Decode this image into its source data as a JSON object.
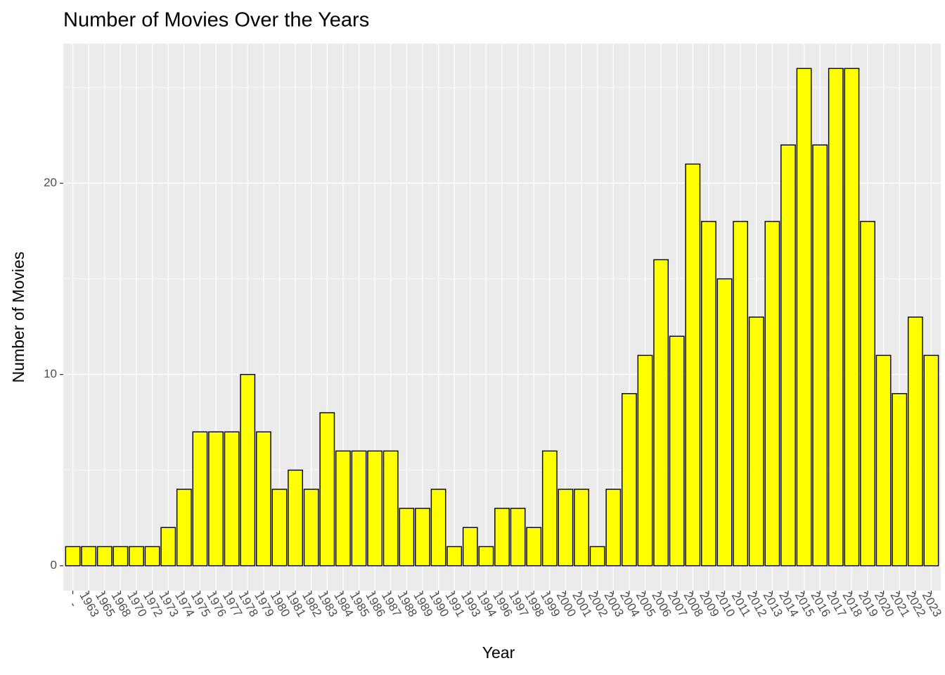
{
  "chart_data": {
    "type": "bar",
    "title": "Number of Movies Over the Years",
    "x_label": "Year",
    "y_label": "Number of Movies",
    "categories": [
      "-",
      "1963",
      "1965",
      "1968",
      "1970",
      "1972",
      "1973",
      "1974",
      "1975",
      "1976",
      "1977",
      "1978",
      "1979",
      "1980",
      "1981",
      "1982",
      "1983",
      "1984",
      "1985",
      "1986",
      "1987",
      "1988",
      "1989",
      "1990",
      "1991",
      "1993",
      "1994",
      "1996",
      "1997",
      "1998",
      "1999",
      "2000",
      "2001",
      "2002",
      "2003",
      "2004",
      "2005",
      "2006",
      "2007",
      "2008",
      "2009",
      "2010",
      "2011",
      "2012",
      "2013",
      "2014",
      "2015",
      "2016",
      "2017",
      "2018",
      "2019",
      "2020",
      "2021",
      "2022",
      "2023"
    ],
    "values": [
      1,
      1,
      1,
      1,
      1,
      1,
      2,
      4,
      7,
      7,
      7,
      10,
      7,
      4,
      5,
      4,
      8,
      6,
      6,
      6,
      6,
      3,
      3,
      4,
      1,
      2,
      1,
      3,
      3,
      2,
      6,
      4,
      4,
      1,
      4,
      9,
      11,
      16,
      12,
      21,
      18,
      15,
      18,
      13,
      18,
      22,
      26,
      22,
      26,
      26,
      18,
      11,
      9,
      13,
      11
    ],
    "color": "#ffff00",
    "edge_color": "#000000",
    "ylim": [
      -1.3,
      27.3
    ],
    "yticks": [
      0,
      10,
      20
    ],
    "grid": true
  }
}
